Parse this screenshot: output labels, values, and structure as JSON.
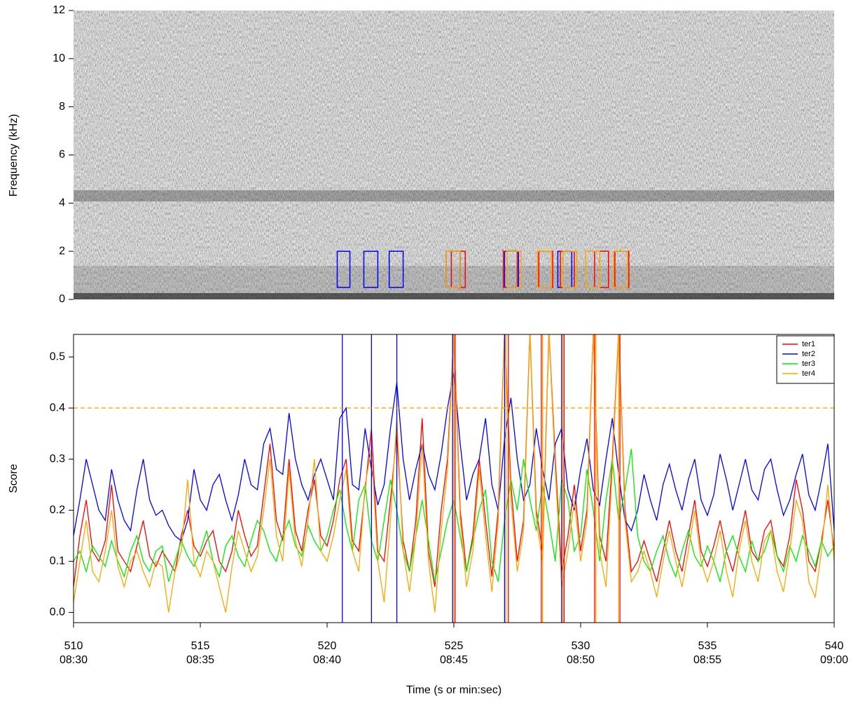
{
  "chart_data": [
    {
      "type": "spectrogram",
      "ylabel": "Frequency (kHz)",
      "xlim": [
        510,
        540
      ],
      "ylim": [
        0,
        12
      ],
      "yticks": [
        0,
        2,
        4,
        6,
        8,
        10,
        12
      ],
      "boxes": [
        {
          "color": "#0000ff",
          "t": [
            520.4,
            520.9
          ],
          "f": [
            0.5,
            2
          ]
        },
        {
          "color": "#0000ff",
          "t": [
            521.45,
            522.0
          ],
          "f": [
            0.5,
            2
          ]
        },
        {
          "color": "#0000ff",
          "t": [
            522.45,
            523.0
          ],
          "f": [
            0.5,
            2
          ]
        },
        {
          "color": "#0000ff",
          "t": [
            524.7,
            525.25
          ],
          "f": [
            0.5,
            2
          ]
        },
        {
          "color": "#0000ff",
          "t": [
            527.0,
            527.55
          ],
          "f": [
            0.5,
            2
          ]
        },
        {
          "color": "#0000ff",
          "t": [
            529.1,
            529.65
          ],
          "f": [
            0.5,
            2
          ]
        },
        {
          "color": "#ff0000",
          "t": [
            524.9,
            525.45
          ],
          "f": [
            0.5,
            2
          ]
        },
        {
          "color": "#ff0000",
          "t": [
            526.95,
            527.5
          ],
          "f": [
            0.5,
            2
          ]
        },
        {
          "color": "#ff0000",
          "t": [
            528.35,
            528.9
          ],
          "f": [
            0.5,
            2
          ]
        },
        {
          "color": "#ff0000",
          "t": [
            529.2,
            529.75
          ],
          "f": [
            0.5,
            2
          ]
        },
        {
          "color": "#ff0000",
          "t": [
            530.55,
            531.1
          ],
          "f": [
            0.5,
            2
          ]
        },
        {
          "color": "#ff0000",
          "t": [
            531.35,
            531.9
          ],
          "f": [
            0.5,
            2
          ]
        },
        {
          "color": "#ffa500",
          "t": [
            524.7,
            525.25
          ],
          "f": [
            0.5,
            2
          ]
        },
        {
          "color": "#ffa500",
          "t": [
            527.1,
            527.65
          ],
          "f": [
            0.5,
            2
          ]
        },
        {
          "color": "#ffa500",
          "t": [
            528.3,
            528.85
          ],
          "f": [
            0.5,
            2
          ]
        },
        {
          "color": "#ffa500",
          "t": [
            529.3,
            529.85
          ],
          "f": [
            0.5,
            2
          ]
        },
        {
          "color": "#ffa500",
          "t": [
            530.2,
            530.75
          ],
          "f": [
            0.5,
            2
          ]
        },
        {
          "color": "#ffa500",
          "t": [
            531.3,
            531.85
          ],
          "f": [
            0.5,
            2
          ]
        }
      ]
    },
    {
      "type": "line",
      "ylabel": "Score",
      "xlabel": "Time (s or min:sec)",
      "xlim": [
        510,
        540
      ],
      "xticks": [
        510,
        515,
        520,
        525,
        530,
        535,
        540
      ],
      "xtick_sublabels": [
        "08:30",
        "08:35",
        "08:40",
        "08:45",
        "08:50",
        "08:55",
        "09:00"
      ],
      "ylim": [
        -0.02,
        0.544
      ],
      "yticks": [
        {
          "value": 0,
          "label": "0.0"
        },
        0.1,
        0.2,
        0.3,
        0.4,
        0.5
      ],
      "threshold": 0.4,
      "threshold_color": "#ffa500",
      "legend": "top-right",
      "x": [
        510,
        510.25,
        510.5,
        510.75,
        511,
        511.25,
        511.5,
        511.75,
        512,
        512.25,
        512.5,
        512.75,
        513,
        513.25,
        513.5,
        513.75,
        514,
        514.25,
        514.5,
        514.75,
        515,
        515.25,
        515.5,
        515.75,
        516,
        516.25,
        516.5,
        516.75,
        517,
        517.25,
        517.5,
        517.75,
        518,
        518.25,
        518.5,
        518.75,
        519,
        519.25,
        519.5,
        519.75,
        520,
        520.25,
        520.5,
        520.75,
        521,
        521.25,
        521.5,
        521.75,
        522,
        522.25,
        522.5,
        522.75,
        523,
        523.25,
        523.5,
        523.75,
        524,
        524.25,
        524.5,
        524.75,
        525,
        525.25,
        525.5,
        525.75,
        526,
        526.25,
        526.5,
        526.75,
        527,
        527.25,
        527.5,
        527.75,
        528,
        528.25,
        528.5,
        528.75,
        529,
        529.25,
        529.5,
        529.75,
        530,
        530.25,
        530.5,
        530.75,
        531,
        531.25,
        531.5,
        531.75,
        532,
        532.25,
        532.5,
        532.75,
        533,
        533.25,
        533.5,
        533.75,
        534,
        534.25,
        534.5,
        534.75,
        535,
        535.25,
        535.5,
        535.75,
        536,
        536.25,
        536.5,
        536.75,
        537,
        537.25,
        537.5,
        537.75,
        538,
        538.25,
        538.5,
        538.75,
        539,
        539.25,
        539.5,
        539.75,
        540
      ],
      "series": [
        {
          "name": "ter1",
          "color": "#ff0000",
          "detections": [
            525.05,
            527.15,
            528.45,
            529.35,
            530.55,
            531.55
          ],
          "values": [
            0.05,
            0.15,
            0.22,
            0.12,
            0.1,
            0.14,
            0.25,
            0.12,
            0.1,
            0.08,
            0.13,
            0.18,
            0.11,
            0.09,
            0.12,
            0.1,
            0.08,
            0.15,
            0.2,
            0.13,
            0.11,
            0.14,
            0.16,
            0.1,
            0.08,
            0.12,
            0.2,
            0.15,
            0.11,
            0.13,
            0.23,
            0.33,
            0.18,
            0.14,
            0.3,
            0.16,
            0.12,
            0.2,
            0.26,
            0.15,
            0.13,
            0.18,
            0.26,
            0.3,
            0.14,
            0.12,
            0.24,
            0.36,
            0.12,
            0.1,
            0.22,
            0.35,
            0.14,
            0.08,
            0.18,
            0.38,
            0.12,
            0.05,
            0.2,
            0.3,
            0.55,
            0.2,
            0.08,
            0.15,
            0.3,
            0.18,
            0.07,
            0.2,
            0.55,
            0.25,
            0.1,
            0.18,
            0.55,
            0.2,
            0.12,
            0.55,
            0.3,
            0.08,
            0.15,
            0.25,
            0.12,
            0.2,
            0.55,
            0.15,
            0.1,
            0.3,
            0.55,
            0.2,
            0.08,
            0.1,
            0.14,
            0.1,
            0.06,
            0.12,
            0.18,
            0.12,
            0.08,
            0.15,
            0.22,
            0.12,
            0.09,
            0.13,
            0.18,
            0.12,
            0.08,
            0.14,
            0.2,
            0.12,
            0.1,
            0.16,
            0.18,
            0.11,
            0.09,
            0.15,
            0.26,
            0.2,
            0.1,
            0.08,
            0.14,
            0.22,
            0.12
          ]
        },
        {
          "name": "ter2",
          "color": "#0000ff",
          "detections": [
            520.6,
            521.75,
            522.75,
            524.95,
            527.0,
            529.25
          ],
          "values": [
            0.15,
            0.22,
            0.3,
            0.25,
            0.2,
            0.18,
            0.28,
            0.22,
            0.18,
            0.16,
            0.24,
            0.3,
            0.22,
            0.19,
            0.2,
            0.17,
            0.15,
            0.14,
            0.18,
            0.28,
            0.22,
            0.2,
            0.25,
            0.27,
            0.22,
            0.18,
            0.23,
            0.3,
            0.25,
            0.24,
            0.33,
            0.36,
            0.28,
            0.27,
            0.39,
            0.3,
            0.25,
            0.22,
            0.27,
            0.3,
            0.26,
            0.22,
            0.38,
            0.4,
            0.25,
            0.24,
            0.36,
            0.28,
            0.21,
            0.25,
            0.36,
            0.45,
            0.3,
            0.22,
            0.28,
            0.33,
            0.27,
            0.24,
            0.31,
            0.4,
            0.47,
            0.33,
            0.22,
            0.27,
            0.3,
            0.38,
            0.25,
            0.2,
            0.34,
            0.42,
            0.3,
            0.22,
            0.25,
            0.36,
            0.28,
            0.22,
            0.33,
            0.36,
            0.24,
            0.2,
            0.28,
            0.34,
            0.24,
            0.21,
            0.3,
            0.38,
            0.27,
            0.18,
            0.16,
            0.2,
            0.27,
            0.22,
            0.18,
            0.25,
            0.29,
            0.24,
            0.2,
            0.26,
            0.3,
            0.22,
            0.19,
            0.23,
            0.31,
            0.26,
            0.2,
            0.25,
            0.3,
            0.24,
            0.22,
            0.28,
            0.3,
            0.24,
            0.19,
            0.22,
            0.27,
            0.31,
            0.23,
            0.2,
            0.26,
            0.33,
            0.16
          ]
        },
        {
          "name": "ter3",
          "color": "#00ee00",
          "values": [
            0.1,
            0.12,
            0.08,
            0.13,
            0.11,
            0.09,
            0.14,
            0.1,
            0.07,
            0.12,
            0.15,
            0.1,
            0.08,
            0.12,
            0.13,
            0.06,
            0.1,
            0.14,
            0.11,
            0.09,
            0.12,
            0.16,
            0.1,
            0.07,
            0.13,
            0.15,
            0.11,
            0.09,
            0.14,
            0.18,
            0.16,
            0.12,
            0.1,
            0.15,
            0.18,
            0.13,
            0.11,
            0.17,
            0.14,
            0.12,
            0.15,
            0.2,
            0.24,
            0.17,
            0.12,
            0.22,
            0.25,
            0.14,
            0.1,
            0.18,
            0.26,
            0.2,
            0.12,
            0.08,
            0.15,
            0.22,
            0.14,
            0.06,
            0.12,
            0.18,
            0.22,
            0.15,
            0.08,
            0.14,
            0.2,
            0.24,
            0.1,
            0.06,
            0.18,
            0.26,
            0.2,
            0.3,
            0.22,
            0.16,
            0.25,
            0.18,
            0.1,
            0.26,
            0.22,
            0.12,
            0.15,
            0.28,
            0.2,
            0.1,
            0.22,
            0.3,
            0.18,
            0.24,
            0.32,
            0.15,
            0.1,
            0.08,
            0.12,
            0.15,
            0.1,
            0.07,
            0.12,
            0.16,
            0.11,
            0.09,
            0.13,
            0.1,
            0.06,
            0.12,
            0.15,
            0.11,
            0.08,
            0.14,
            0.1,
            0.12,
            0.16,
            0.11,
            0.08,
            0.13,
            0.1,
            0.15,
            0.12,
            0.09,
            0.14,
            0.11,
            0.13
          ]
        },
        {
          "name": "ter4",
          "color": "#ffa500",
          "detections": [
            525.0,
            527.05,
            528.5,
            529.3,
            530.6,
            531.5
          ],
          "values": [
            0.02,
            0.1,
            0.18,
            0.08,
            0.06,
            0.12,
            0.2,
            0.09,
            0.05,
            0.1,
            0.12,
            0.08,
            0.05,
            0.1,
            0.09,
            0.0,
            0.08,
            0.12,
            0.26,
            0.1,
            0.07,
            0.12,
            0.1,
            0.05,
            0.0,
            0.09,
            0.16,
            0.12,
            0.08,
            0.11,
            0.2,
            0.3,
            0.15,
            0.1,
            0.28,
            0.14,
            0.09,
            0.18,
            0.3,
            0.12,
            0.1,
            0.15,
            0.22,
            0.28,
            0.12,
            0.08,
            0.25,
            0.32,
            0.1,
            0.02,
            0.18,
            0.38,
            0.12,
            0.04,
            0.15,
            0.33,
            0.1,
            0.0,
            0.16,
            0.28,
            0.55,
            0.18,
            0.05,
            0.12,
            0.28,
            0.15,
            0.04,
            0.18,
            0.55,
            0.22,
            0.08,
            0.16,
            0.55,
            0.18,
            0.1,
            0.55,
            0.28,
            0.05,
            0.12,
            0.22,
            0.1,
            0.18,
            0.55,
            0.12,
            0.05,
            0.28,
            0.55,
            0.18,
            0.06,
            0.08,
            0.12,
            0.08,
            0.03,
            0.1,
            0.16,
            0.1,
            0.05,
            0.12,
            0.2,
            0.1,
            0.06,
            0.1,
            0.16,
            0.08,
            0.03,
            0.12,
            0.18,
            0.1,
            0.06,
            0.14,
            0.16,
            0.08,
            0.04,
            0.12,
            0.22,
            0.18,
            0.06,
            0.03,
            0.12,
            0.25,
            0.1
          ]
        }
      ]
    }
  ]
}
